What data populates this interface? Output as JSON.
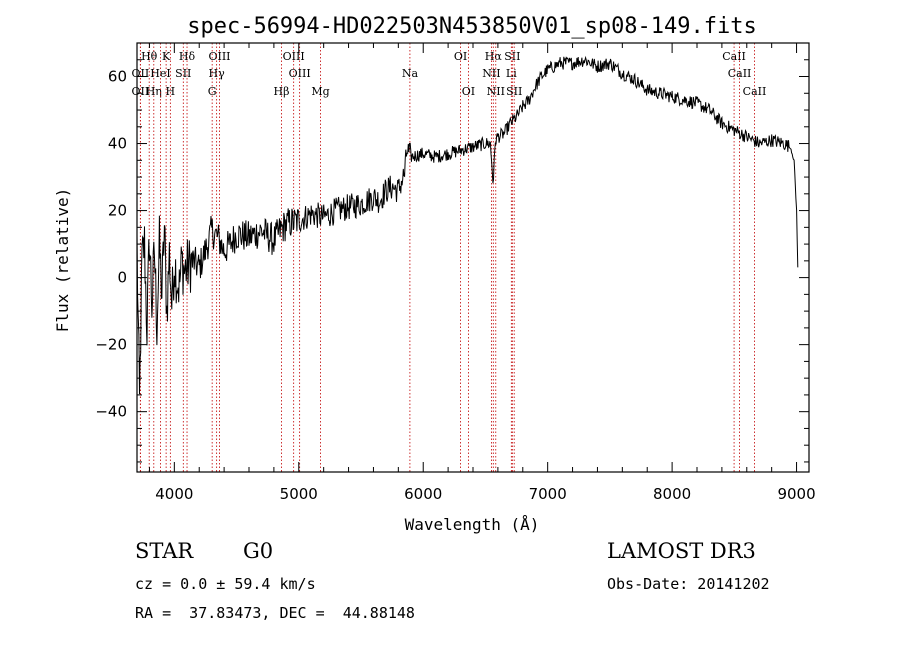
{
  "chart_data": {
    "type": "line",
    "title": "spec-56994-HD022503N453850V01_sp08-149.fits",
    "xlabel": "Wavelength (Å)",
    "ylabel": "Flux (relative)",
    "xlim": [
      3700,
      9100
    ],
    "ylim": [
      -58,
      70
    ],
    "xticks": [
      4000,
      5000,
      6000,
      7000,
      8000,
      9000
    ],
    "yticks": [
      -40,
      -20,
      0,
      20,
      40,
      60
    ],
    "series": [
      {
        "name": "spectrum",
        "x": [
          3700,
          3720,
          3740,
          3760,
          3780,
          3800,
          3820,
          3840,
          3860,
          3880,
          3900,
          3920,
          3940,
          3960,
          3980,
          4000,
          4020,
          4040,
          4060,
          4080,
          4100,
          4150,
          4200,
          4250,
          4300,
          4350,
          4400,
          4450,
          4500,
          4600,
          4700,
          4800,
          4850,
          4900,
          5000,
          5100,
          5200,
          5300,
          5400,
          5500,
          5600,
          5650,
          5700,
          5750,
          5800,
          5850,
          5870,
          5900,
          6000,
          6100,
          6200,
          6300,
          6400,
          6500,
          6540,
          6562,
          6580,
          6600,
          6650,
          6700,
          6750,
          6800,
          6850,
          6900,
          6950,
          7000,
          7100,
          7200,
          7300,
          7400,
          7500,
          7600,
          7700,
          7800,
          7900,
          8000,
          8100,
          8200,
          8300,
          8400,
          8500,
          8600,
          8700,
          8800,
          8900,
          8950,
          8980,
          9000,
          9010
        ],
        "y": [
          10,
          -38,
          5,
          10,
          -15,
          12,
          -8,
          8,
          -14,
          10,
          -5,
          15,
          -10,
          7,
          -8,
          5,
          0,
          -3,
          5,
          2,
          3,
          5,
          3,
          8,
          14,
          12,
          8,
          10,
          13,
          12,
          14,
          11,
          14,
          16,
          17,
          19,
          18,
          20,
          21,
          22,
          24,
          23,
          26,
          27,
          26,
          31,
          38,
          36,
          37,
          36,
          37,
          38,
          39,
          40,
          40,
          28,
          41,
          42,
          43,
          46,
          48,
          51,
          53,
          57,
          60,
          62,
          64,
          64,
          65,
          63,
          64,
          61,
          59,
          56,
          55,
          54,
          53,
          52,
          50,
          46,
          44,
          42,
          40,
          41,
          40,
          39,
          35,
          20,
          3
        ]
      }
    ],
    "lines": [
      {
        "name": "Hθ",
        "wave": 3798,
        "row": 1
      },
      {
        "name": "OII",
        "wave": 3727,
        "row": 2
      },
      {
        "name": "OII",
        "wave": 3727,
        "row": 3
      },
      {
        "name": "Hη",
        "wave": 3835,
        "row": 3
      },
      {
        "name": "K",
        "wave": 3934,
        "row": 1
      },
      {
        "name": "HeI",
        "wave": 3889,
        "row": 2
      },
      {
        "name": "H",
        "wave": 3968,
        "row": 3
      },
      {
        "name": "Hδ",
        "wave": 4102,
        "row": 1
      },
      {
        "name": "SII",
        "wave": 4072,
        "row": 2
      },
      {
        "name": "OIII",
        "wave": 4363,
        "row": 1
      },
      {
        "name": "Hγ",
        "wave": 4340,
        "row": 2
      },
      {
        "name": "G",
        "wave": 4304,
        "row": 3
      },
      {
        "name": "Hβ",
        "wave": 4861,
        "row": 3
      },
      {
        "name": "OIII",
        "wave": 4959,
        "row": 1
      },
      {
        "name": "OIII",
        "wave": 5007,
        "row": 2
      },
      {
        "name": "Mg",
        "wave": 5175,
        "row": 3
      },
      {
        "name": "Na",
        "wave": 5893,
        "row": 2
      },
      {
        "name": "OI",
        "wave": 6300,
        "row": 1
      },
      {
        "name": "OI",
        "wave": 6363,
        "row": 3
      },
      {
        "name": "Hα",
        "wave": 6563,
        "row": 1
      },
      {
        "name": "NII",
        "wave": 6548,
        "row": 2
      },
      {
        "name": "NII",
        "wave": 6583,
        "row": 3
      },
      {
        "name": "SII",
        "wave": 6716,
        "row": 1
      },
      {
        "name": "Li",
        "wave": 6708,
        "row": 2
      },
      {
        "name": "SII",
        "wave": 6731,
        "row": 3
      },
      {
        "name": "CaII",
        "wave": 8498,
        "row": 1
      },
      {
        "name": "CaII",
        "wave": 8542,
        "row": 2
      },
      {
        "name": "CaII",
        "wave": 8662,
        "row": 3
      }
    ]
  },
  "info": {
    "class": "STAR",
    "subclass": "G0",
    "survey": "LAMOST DR3",
    "cz": "cz = 0.0 ± 59.4 km/s",
    "obsdate": "Obs-Date: 20141202",
    "radec": "RA =  37.83473, DEC =  44.88148"
  }
}
